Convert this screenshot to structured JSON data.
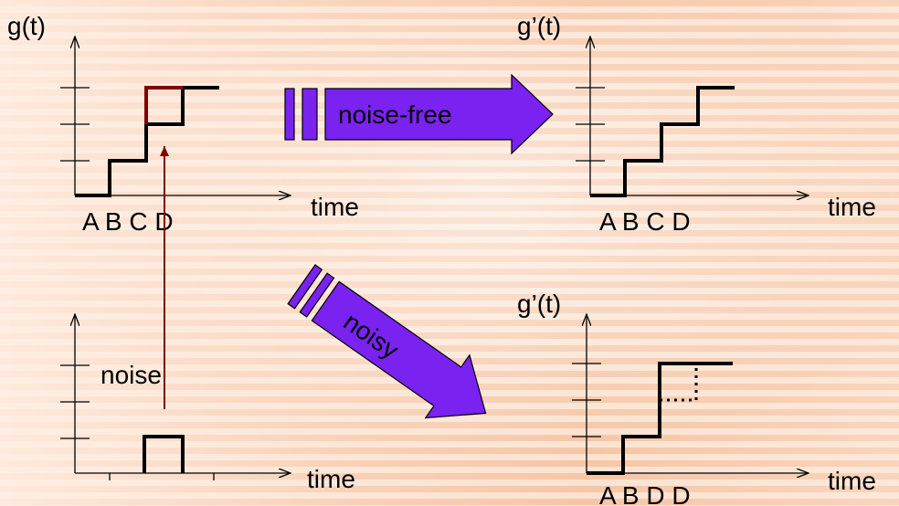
{
  "panels": {
    "top_left": {
      "ylabel": "g(t)",
      "xlabel": "time",
      "ticks": "A B C D"
    },
    "top_right": {
      "ylabel": "g’(t)",
      "xlabel": "time",
      "ticks": "A B C D"
    },
    "bottom_left": {
      "noise_label": "noise",
      "xlabel": "time"
    },
    "bottom_right": {
      "ylabel": "g’(t)",
      "xlabel": "time",
      "ticks": "A B D D"
    }
  },
  "arrows": {
    "noise_free_label": "noise-free",
    "noisy_label": "noisy"
  },
  "colors": {
    "arrow_fill": "#7a22f0",
    "highlight": "#800000",
    "line": "#000000"
  }
}
